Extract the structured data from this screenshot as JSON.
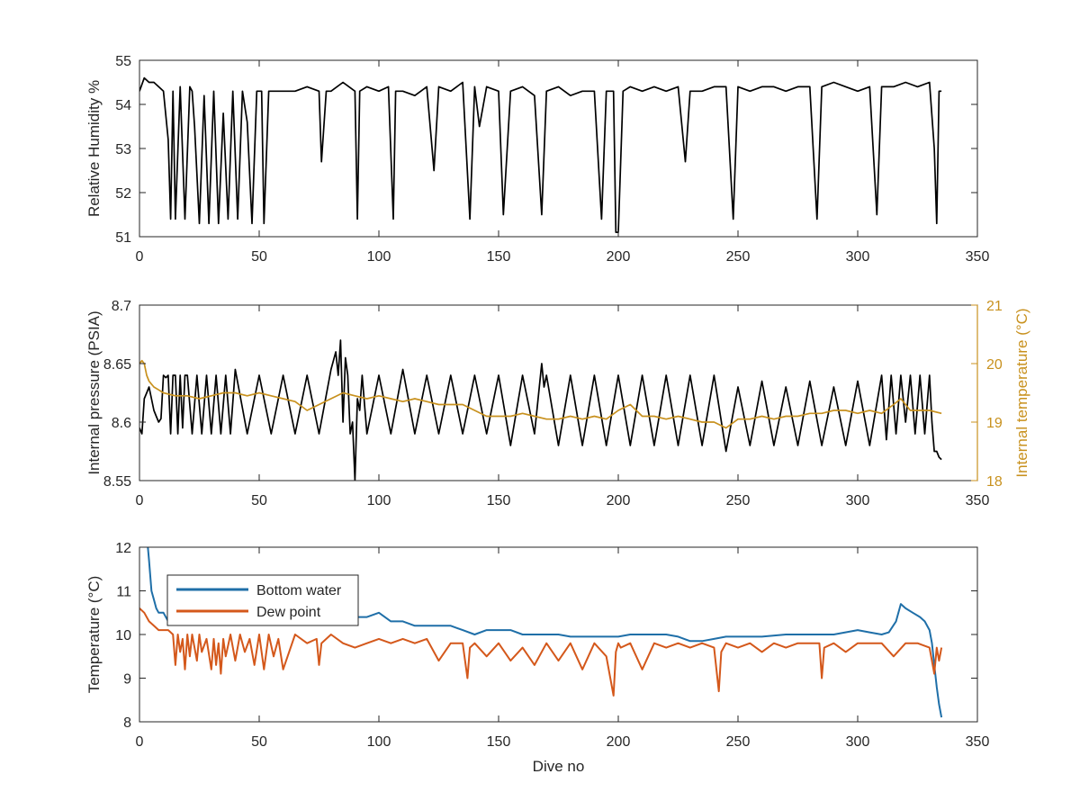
{
  "chart_data": [
    {
      "type": "line",
      "xlabel": "",
      "ylabel": "Relative Humidity %",
      "xlim": [
        0,
        350
      ],
      "ylim": [
        51,
        55
      ],
      "xticks": [
        0,
        50,
        100,
        150,
        200,
        250,
        300,
        350
      ],
      "yticks": [
        51,
        52,
        53,
        54,
        55
      ],
      "grid": false,
      "series": [
        {
          "color": "#000000",
          "x": [
            0,
            2,
            4,
            6,
            8,
            10,
            12,
            13,
            14,
            15,
            17,
            19,
            21,
            22,
            23,
            25,
            27,
            29,
            31,
            33,
            35,
            37,
            39,
            41,
            43,
            45,
            47,
            49,
            51,
            52,
            54,
            56,
            58,
            60,
            65,
            70,
            75,
            76,
            78,
            80,
            85,
            90,
            91,
            92,
            95,
            100,
            104,
            106,
            107,
            110,
            115,
            120,
            123,
            125,
            130,
            135,
            138,
            140,
            142,
            145,
            150,
            152,
            155,
            160,
            165,
            168,
            170,
            175,
            180,
            185,
            190,
            193,
            195,
            198,
            199,
            200,
            202,
            205,
            210,
            215,
            220,
            225,
            228,
            230,
            235,
            240,
            245,
            248,
            250,
            255,
            260,
            265,
            270,
            275,
            280,
            283,
            285,
            290,
            295,
            300,
            305,
            308,
            310,
            315,
            320,
            325,
            330,
            332,
            333,
            334,
            335
          ],
          "y": [
            54.3,
            54.6,
            54.5,
            54.5,
            54.4,
            54.3,
            53.2,
            51.4,
            54.3,
            51.4,
            54.4,
            51.4,
            54.4,
            54.3,
            53.5,
            51.3,
            54.2,
            51.3,
            54.3,
            51.3,
            53.8,
            51.4,
            54.3,
            51.4,
            54.3,
            53.6,
            51.3,
            54.3,
            54.3,
            51.3,
            54.3,
            54.3,
            54.3,
            54.3,
            54.3,
            54.4,
            54.3,
            52.7,
            54.3,
            54.3,
            54.5,
            54.3,
            51.4,
            54.3,
            54.4,
            54.3,
            54.4,
            51.4,
            54.3,
            54.3,
            54.2,
            54.4,
            52.5,
            54.4,
            54.3,
            54.5,
            51.4,
            54.4,
            53.5,
            54.4,
            54.3,
            51.5,
            54.3,
            54.4,
            54.2,
            51.5,
            54.3,
            54.4,
            54.2,
            54.3,
            54.3,
            51.4,
            54.3,
            54.3,
            51.1,
            51.1,
            54.3,
            54.4,
            54.3,
            54.4,
            54.3,
            54.4,
            52.7,
            54.3,
            54.3,
            54.4,
            54.4,
            51.4,
            54.4,
            54.3,
            54.4,
            54.4,
            54.3,
            54.4,
            54.4,
            51.4,
            54.4,
            54.5,
            54.4,
            54.3,
            54.4,
            51.5,
            54.4,
            54.4,
            54.5,
            54.4,
            54.5,
            53.0,
            51.3,
            54.3,
            54.3
          ]
        }
      ]
    },
    {
      "type": "line",
      "xlabel": "",
      "ylabel": "Internal pressure (PSIA)",
      "ylabel_right": "Internal temperature (°C)",
      "xlim": [
        0,
        350
      ],
      "ylim": [
        8.55,
        8.7
      ],
      "ylim_right": [
        18,
        21
      ],
      "xticks": [
        0,
        50,
        100,
        150,
        200,
        250,
        300,
        350
      ],
      "yticks": [
        "8.55",
        "8.6",
        "8.65",
        "8.7"
      ],
      "yticks_right": [
        18,
        19,
        20,
        21
      ],
      "grid": false,
      "series": [
        {
          "color": "#000000",
          "axis": "left",
          "x": [
            0,
            1,
            2,
            3,
            4,
            5,
            6,
            7,
            8,
            9,
            10,
            11,
            12,
            13,
            14,
            15,
            16,
            17,
            18,
            19,
            20,
            22,
            24,
            26,
            28,
            30,
            32,
            34,
            36,
            38,
            40,
            45,
            50,
            55,
            60,
            65,
            70,
            75,
            80,
            82,
            83,
            84,
            85,
            86,
            87,
            88,
            89,
            90,
            91,
            92,
            93,
            95,
            100,
            105,
            110,
            115,
            120,
            125,
            130,
            135,
            140,
            145,
            150,
            155,
            160,
            165,
            168,
            169,
            170,
            175,
            180,
            185,
            190,
            195,
            200,
            205,
            210,
            215,
            220,
            225,
            230,
            235,
            240,
            245,
            250,
            255,
            260,
            265,
            270,
            275,
            280,
            285,
            290,
            295,
            300,
            305,
            310,
            312,
            314,
            316,
            318,
            320,
            322,
            324,
            326,
            328,
            330,
            331,
            332,
            333,
            334,
            335
          ],
          "y": [
            8.595,
            8.59,
            8.62,
            8.625,
            8.63,
            8.62,
            8.61,
            8.605,
            8.6,
            8.603,
            8.64,
            8.638,
            8.64,
            8.59,
            8.64,
            8.64,
            8.59,
            8.64,
            8.595,
            8.64,
            8.64,
            8.59,
            8.64,
            8.59,
            8.64,
            8.59,
            8.64,
            8.59,
            8.64,
            8.59,
            8.645,
            8.59,
            8.64,
            8.59,
            8.64,
            8.59,
            8.64,
            8.59,
            8.645,
            8.66,
            8.64,
            8.67,
            8.6,
            8.655,
            8.64,
            8.59,
            8.6,
            8.55,
            8.62,
            8.61,
            8.64,
            8.59,
            8.64,
            8.59,
            8.645,
            8.59,
            8.64,
            8.59,
            8.64,
            8.59,
            8.64,
            8.59,
            8.64,
            8.58,
            8.64,
            8.59,
            8.65,
            8.63,
            8.64,
            8.58,
            8.64,
            8.58,
            8.64,
            8.58,
            8.64,
            8.58,
            8.64,
            8.58,
            8.64,
            8.58,
            8.64,
            8.58,
            8.64,
            8.575,
            8.63,
            8.58,
            8.635,
            8.58,
            8.63,
            8.58,
            8.635,
            8.58,
            8.63,
            8.58,
            8.635,
            8.58,
            8.64,
            8.585,
            8.64,
            8.59,
            8.64,
            8.6,
            8.64,
            8.59,
            8.64,
            8.59,
            8.64,
            8.6,
            8.575,
            8.575,
            8.57,
            8.568
          ]
        },
        {
          "color": "#c8911e",
          "axis": "right",
          "x": [
            0,
            1,
            2,
            3,
            4,
            5,
            6,
            8,
            10,
            15,
            20,
            25,
            30,
            35,
            40,
            45,
            50,
            55,
            60,
            65,
            70,
            75,
            80,
            85,
            90,
            95,
            100,
            105,
            110,
            115,
            120,
            125,
            130,
            135,
            140,
            145,
            150,
            155,
            160,
            165,
            170,
            175,
            180,
            185,
            190,
            195,
            200,
            205,
            210,
            215,
            220,
            225,
            230,
            235,
            240,
            245,
            250,
            255,
            260,
            265,
            270,
            275,
            280,
            285,
            290,
            295,
            300,
            305,
            310,
            315,
            318,
            320,
            322,
            325,
            330,
            335
          ],
          "y": [
            20.0,
            20.05,
            20.0,
            19.8,
            19.7,
            19.65,
            19.6,
            19.55,
            19.5,
            19.45,
            19.45,
            19.4,
            19.45,
            19.5,
            19.5,
            19.45,
            19.5,
            19.45,
            19.4,
            19.35,
            19.2,
            19.3,
            19.4,
            19.5,
            19.45,
            19.4,
            19.45,
            19.4,
            19.35,
            19.4,
            19.35,
            19.3,
            19.3,
            19.3,
            19.2,
            19.1,
            19.1,
            19.1,
            19.15,
            19.1,
            19.05,
            19.05,
            19.1,
            19.05,
            19.1,
            19.05,
            19.2,
            19.3,
            19.1,
            19.1,
            19.05,
            19.1,
            19.05,
            19.0,
            19.0,
            18.9,
            19.05,
            19.05,
            19.1,
            19.05,
            19.1,
            19.1,
            19.15,
            19.15,
            19.2,
            19.2,
            19.15,
            19.2,
            19.15,
            19.3,
            19.4,
            19.3,
            19.2,
            19.2,
            19.2,
            19.15
          ]
        }
      ]
    },
    {
      "type": "line",
      "xlabel": "Dive no",
      "ylabel": "Temperature (°C)",
      "xlim": [
        0,
        350
      ],
      "ylim": [
        8,
        12
      ],
      "xticks": [
        0,
        50,
        100,
        150,
        200,
        250,
        300,
        350
      ],
      "yticks": [
        8,
        9,
        10,
        11,
        12
      ],
      "grid": false,
      "legend": "top-left",
      "series": [
        {
          "name": "Bottom water",
          "color": "#1f6fa8",
          "x": [
            3,
            4,
            5,
            6,
            7,
            8,
            10,
            12,
            15,
            20,
            25,
            30,
            35,
            40,
            45,
            50,
            55,
            60,
            65,
            70,
            75,
            80,
            85,
            90,
            95,
            100,
            105,
            110,
            115,
            120,
            125,
            130,
            135,
            140,
            145,
            150,
            155,
            160,
            165,
            170,
            175,
            180,
            185,
            190,
            195,
            200,
            205,
            210,
            215,
            220,
            225,
            230,
            235,
            240,
            245,
            250,
            260,
            270,
            280,
            290,
            300,
            305,
            310,
            313,
            316,
            318,
            320,
            323,
            326,
            328,
            330,
            331,
            332,
            333,
            334,
            335
          ],
          "y": [
            12.3,
            11.7,
            11.0,
            10.8,
            10.6,
            10.5,
            10.5,
            10.3,
            10.3,
            10.3,
            10.3,
            10.3,
            10.3,
            10.3,
            10.3,
            10.3,
            10.3,
            10.3,
            10.3,
            10.4,
            10.4,
            10.4,
            10.4,
            10.4,
            10.4,
            10.5,
            10.3,
            10.3,
            10.2,
            10.2,
            10.2,
            10.2,
            10.1,
            10.0,
            10.1,
            10.1,
            10.1,
            10.0,
            10.0,
            10.0,
            10.0,
            9.95,
            9.95,
            9.95,
            9.95,
            9.95,
            10.0,
            10.0,
            10.0,
            10.0,
            9.95,
            9.85,
            9.85,
            9.9,
            9.95,
            9.95,
            9.95,
            10.0,
            10.0,
            10.0,
            10.1,
            10.05,
            10.0,
            10.05,
            10.3,
            10.7,
            10.6,
            10.5,
            10.4,
            10.3,
            10.1,
            9.8,
            9.3,
            8.8,
            8.4,
            8.1
          ]
        },
        {
          "name": "Dew point",
          "color": "#d4581b",
          "x": [
            0,
            2,
            4,
            6,
            8,
            10,
            12,
            14,
            15,
            16,
            17,
            18,
            19,
            20,
            21,
            22,
            24,
            25,
            26,
            28,
            30,
            31,
            32,
            33,
            34,
            35,
            36,
            38,
            40,
            42,
            44,
            46,
            48,
            50,
            52,
            54,
            56,
            58,
            60,
            65,
            70,
            74,
            75,
            76,
            80,
            85,
            90,
            95,
            100,
            105,
            110,
            115,
            120,
            125,
            130,
            135,
            137,
            138,
            140,
            145,
            150,
            155,
            160,
            165,
            170,
            175,
            180,
            185,
            190,
            195,
            198,
            199,
            200,
            201,
            205,
            210,
            215,
            220,
            225,
            230,
            235,
            240,
            242,
            243,
            245,
            250,
            255,
            260,
            265,
            270,
            275,
            280,
            284,
            285,
            286,
            290,
            295,
            300,
            305,
            310,
            315,
            320,
            325,
            330,
            332,
            333,
            334,
            335
          ],
          "y": [
            10.6,
            10.5,
            10.3,
            10.2,
            10.1,
            10.1,
            10.1,
            10.0,
            9.3,
            10.0,
            9.6,
            9.9,
            9.2,
            10.0,
            9.5,
            10.0,
            9.4,
            10.0,
            9.6,
            9.9,
            9.2,
            9.9,
            9.3,
            9.8,
            9.1,
            9.9,
            9.5,
            10.0,
            9.4,
            10.0,
            9.6,
            9.9,
            9.3,
            10.0,
            9.2,
            10.0,
            9.5,
            9.9,
            9.2,
            10.0,
            9.8,
            9.9,
            9.3,
            9.8,
            10.0,
            9.8,
            9.7,
            9.8,
            9.9,
            9.8,
            9.9,
            9.8,
            9.9,
            9.4,
            9.8,
            9.8,
            9.0,
            9.7,
            9.8,
            9.5,
            9.8,
            9.4,
            9.7,
            9.3,
            9.8,
            9.4,
            9.8,
            9.2,
            9.8,
            9.5,
            8.6,
            9.6,
            9.8,
            9.7,
            9.8,
            9.2,
            9.8,
            9.7,
            9.8,
            9.7,
            9.8,
            9.7,
            8.7,
            9.6,
            9.8,
            9.7,
            9.8,
            9.6,
            9.8,
            9.7,
            9.8,
            9.8,
            9.8,
            9.0,
            9.7,
            9.8,
            9.6,
            9.8,
            9.8,
            9.8,
            9.5,
            9.8,
            9.8,
            9.7,
            9.1,
            9.7,
            9.4,
            9.7
          ]
        }
      ]
    }
  ]
}
